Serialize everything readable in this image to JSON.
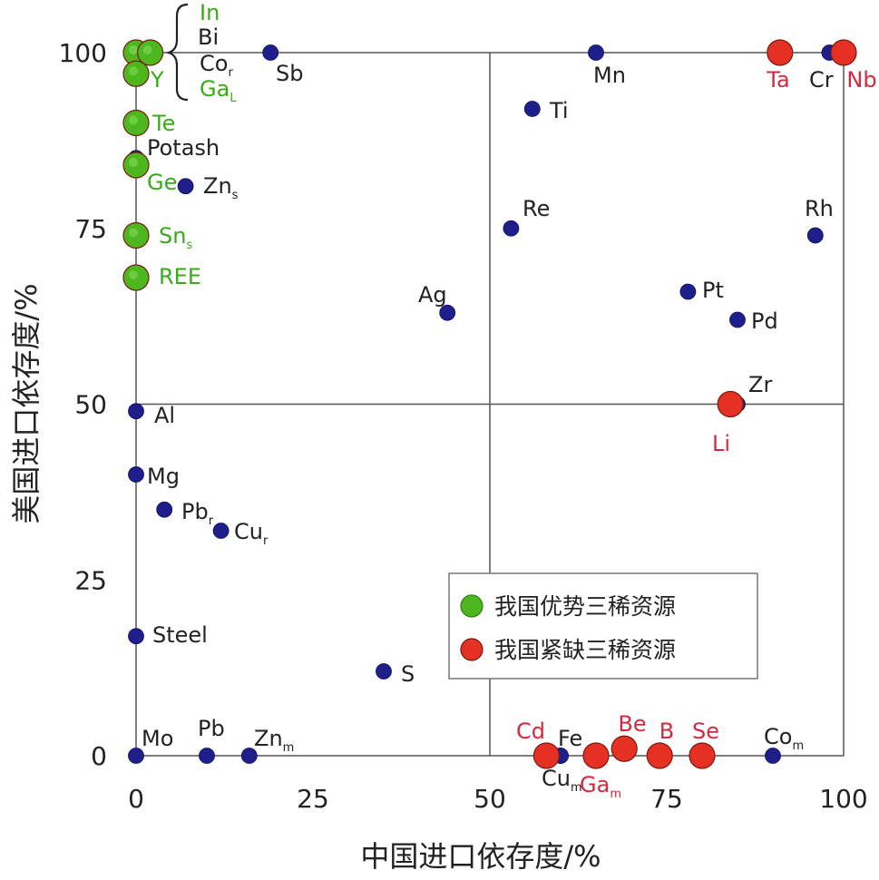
{
  "chart_data": {
    "type": "scatter",
    "xlabel": "中国进口依存度/%",
    "ylabel": "美国进口依存度/%",
    "xlim": [
      0,
      100
    ],
    "ylim": [
      0,
      100
    ],
    "x_ticks": [
      "0",
      "25",
      "50",
      "75",
      "100"
    ],
    "y_ticks": [
      "0",
      "25",
      "50",
      "75",
      "100"
    ],
    "reference_lines": {
      "x": 50,
      "y": 50
    },
    "grid": false,
    "legend_placement": "lower-right",
    "colors": {
      "normal": "#1f1f8c",
      "advantage": "#4db81e",
      "scarce": "#e53024",
      "label_black": "#222222",
      "label_green": "#3aaa1a",
      "label_red": "#d8273f",
      "frame": "#555555",
      "plot_bg": "#ffffff"
    },
    "series": [
      {
        "name": "我国优势三稀资源",
        "color": "#4db81e",
        "points": [
          {
            "label": "In",
            "x": 0,
            "y": 100
          },
          {
            "label": "Y",
            "x": 0,
            "y": 97
          },
          {
            "label": "Te",
            "x": 0,
            "y": 90
          },
          {
            "label": "Ge",
            "x": 0,
            "y": 84
          },
          {
            "label": "Sn",
            "sub": "s",
            "x": 0,
            "y": 74
          },
          {
            "label": "REE",
            "x": 0,
            "y": 68
          },
          {
            "label": "Ga",
            "sub": "L",
            "x": 2,
            "y": 100
          }
        ]
      },
      {
        "name": "我国紧缺三稀资源",
        "color": "#e53024",
        "points": [
          {
            "label": "Ta",
            "x": 91,
            "y": 100
          },
          {
            "label": "Nb",
            "x": 100,
            "y": 100
          },
          {
            "label": "Li",
            "x": 84,
            "y": 50
          },
          {
            "label": "Cd",
            "x": 58,
            "y": 0
          },
          {
            "label": "Ga",
            "sub": "m",
            "x": 65,
            "y": 0
          },
          {
            "label": "Be",
            "x": 69,
            "y": 1
          },
          {
            "label": "B",
            "x": 74,
            "y": 0
          },
          {
            "label": "Se",
            "x": 80,
            "y": 0
          }
        ]
      },
      {
        "points": [
          {
            "label": "Bi",
            "x": 0,
            "y": 100
          },
          {
            "label": "Co",
            "sub": "r",
            "x": 0,
            "y": 100
          },
          {
            "label": "Sb",
            "x": 19,
            "y": 100
          },
          {
            "label": "Mn",
            "x": 65,
            "y": 100
          },
          {
            "label": "Cr",
            "x": 98,
            "y": 100
          },
          {
            "label": "Ti",
            "x": 56,
            "y": 92
          },
          {
            "label": "Potash",
            "x": 0,
            "y": 85
          },
          {
            "label": "Zn",
            "sub": "s",
            "x": 7,
            "y": 81
          },
          {
            "label": "Re",
            "x": 53,
            "y": 75
          },
          {
            "label": "Rh",
            "x": 96,
            "y": 74
          },
          {
            "label": "Pt",
            "x": 78,
            "y": 66
          },
          {
            "label": "Ag",
            "x": 44,
            "y": 63
          },
          {
            "label": "Pd",
            "x": 85,
            "y": 62
          },
          {
            "label": "Zr",
            "x": 85,
            "y": 50
          },
          {
            "label": "Al",
            "x": 0,
            "y": 49
          },
          {
            "label": "Mg",
            "x": 0,
            "y": 40
          },
          {
            "label": "Pb",
            "sub": "r",
            "x": 4,
            "y": 35
          },
          {
            "label": "Cu",
            "sub": "r",
            "x": 12,
            "y": 32
          },
          {
            "label": "Steel",
            "x": 0,
            "y": 17
          },
          {
            "label": "S",
            "x": 35,
            "y": 12
          },
          {
            "label": "Mo",
            "x": 0,
            "y": 0
          },
          {
            "label": "Pb",
            "x": 10,
            "y": 0
          },
          {
            "label": "Zn",
            "sub": "m",
            "x": 16,
            "y": 0
          },
          {
            "label": "Fe",
            "x": 60,
            "y": 0
          },
          {
            "label": "Cu",
            "sub": "m",
            "x": 60,
            "y": 0
          },
          {
            "label": "Co",
            "sub": "m",
            "x": 90,
            "y": 0
          }
        ]
      }
    ]
  }
}
